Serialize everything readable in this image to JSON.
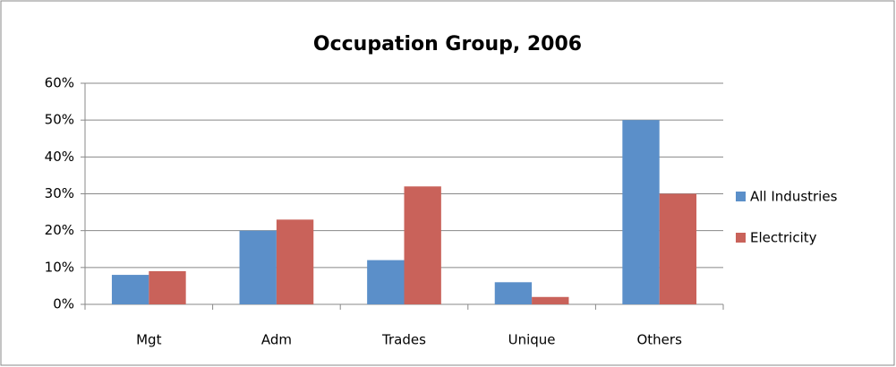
{
  "chart_data": {
    "type": "bar",
    "title": "Occupation Group, 2006",
    "categories": [
      "Mgt",
      "Adm",
      "Trades",
      "Unique",
      "Others"
    ],
    "series": [
      {
        "name": "All Industries",
        "color": "#5b8fc9",
        "values": [
          8,
          20,
          12,
          6,
          50
        ]
      },
      {
        "name": "Electricity",
        "color": "#c9625a",
        "values": [
          9,
          23,
          32,
          2,
          30
        ]
      }
    ],
    "ylim": [
      0,
      60
    ],
    "yticks": [
      {
        "value": 0,
        "label": "0%"
      },
      {
        "value": 10,
        "label": "10%"
      },
      {
        "value": 20,
        "label": "20%"
      },
      {
        "value": 30,
        "label": "30%"
      },
      {
        "value": 40,
        "label": "40%"
      },
      {
        "value": 50,
        "label": "50%"
      },
      {
        "value": 60,
        "label": "60%"
      }
    ],
    "grid": true,
    "legend": "right"
  }
}
